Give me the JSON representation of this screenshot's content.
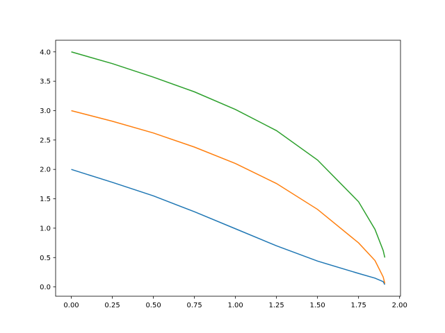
{
  "chart_data": {
    "type": "line",
    "x": [
      0,
      0.25,
      0.5,
      0.75,
      1.0,
      1.25,
      1.5,
      1.75,
      1.85,
      1.9,
      1.91
    ],
    "series": [
      {
        "color": "#1f77b4",
        "values": [
          2.0,
          1.78,
          1.55,
          1.28,
          0.99,
          0.7,
          0.44,
          0.23,
          0.15,
          0.09,
          0.04
        ]
      },
      {
        "color": "#ff7f0e",
        "values": [
          3.0,
          2.82,
          2.62,
          2.38,
          2.1,
          1.76,
          1.32,
          0.75,
          0.45,
          0.17,
          0.06
        ]
      },
      {
        "color": "#2ca02c",
        "values": [
          4.0,
          3.8,
          3.57,
          3.32,
          3.02,
          2.66,
          2.16,
          1.45,
          0.98,
          0.62,
          0.5
        ]
      }
    ],
    "xlim": [
      -0.0955,
      2.0055
    ],
    "ylim": [
      -0.158,
      4.198
    ],
    "xticks": [
      {
        "value": 0,
        "label": "0.00"
      },
      0.25,
      {
        "value": 0.5,
        "label": "0.50"
      },
      0.75,
      {
        "value": 1.0,
        "label": "1.00"
      },
      1.25,
      {
        "value": 1.5,
        "label": "1.50"
      },
      1.75,
      {
        "value": 2.0,
        "label": "2.00"
      }
    ],
    "yticks": [
      {
        "value": 0,
        "label": "0.0"
      },
      0.5,
      {
        "value": 1.0,
        "label": "1.0"
      },
      1.5,
      {
        "value": 2.0,
        "label": "2.0"
      },
      2.5,
      {
        "value": 3.0,
        "label": "3.0"
      },
      3.5,
      {
        "value": 4.0,
        "label": "4.0"
      }
    ],
    "grid": false
  }
}
